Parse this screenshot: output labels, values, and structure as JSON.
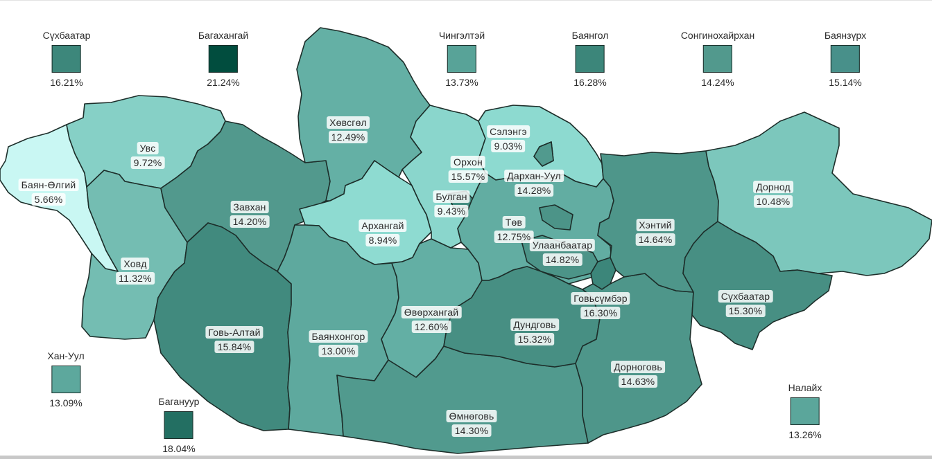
{
  "provinces": [
    {
      "id": "bayan-olgii",
      "name": "Баян-Өлгий",
      "value": "5.66%",
      "color": "#c9f7f3"
    },
    {
      "id": "uvs",
      "name": "Увс",
      "value": "9.72%",
      "color": "#86d0c6"
    },
    {
      "id": "khovd",
      "name": "Ховд",
      "value": "11.32%",
      "color": "#74bdb2"
    },
    {
      "id": "zavkhan",
      "name": "Завхан",
      "value": "14.20%",
      "color": "#52998d"
    },
    {
      "id": "govi-altai",
      "name": "Говь-Алтай",
      "value": "15.84%",
      "color": "#418a7e"
    },
    {
      "id": "khuvsgul",
      "name": "Хөвсгөл",
      "value": "12.49%",
      "color": "#64b0a5"
    },
    {
      "id": "arkhangai",
      "name": "Архангай",
      "value": "8.94%",
      "color": "#8edbd1"
    },
    {
      "id": "bayankhongor",
      "name": "Баянхонгор",
      "value": "13.00%",
      "color": "#5ea99e"
    },
    {
      "id": "uvurkhangai",
      "name": "Өвөрхангай",
      "value": "12.60%",
      "color": "#63afa4"
    },
    {
      "id": "umnugovi",
      "name": "Өмнөговь",
      "value": "14.30%",
      "color": "#519a8e"
    },
    {
      "id": "bulgan",
      "name": "Булган",
      "value": "9.43%",
      "color": "#8ad6cc"
    },
    {
      "id": "orkhon",
      "name": "Орхон",
      "value": "15.57%",
      "color": "#448e82"
    },
    {
      "id": "selenge",
      "name": "Сэлэнгэ",
      "value": "9.03%",
      "color": "#8ddad0"
    },
    {
      "id": "darkhan-uul",
      "name": "Дархан-Уул",
      "value": "14.28%",
      "color": "#519a8e"
    },
    {
      "id": "tuv",
      "name": "Төв",
      "value": "12.75%",
      "color": "#62ada2"
    },
    {
      "id": "ulaanbaatar",
      "name": "Улаанбаатар",
      "value": "14.82%",
      "color": "#4c9488"
    },
    {
      "id": "dundgovi",
      "name": "Дундговь",
      "value": "15.32%",
      "color": "#478f83"
    },
    {
      "id": "govisumber",
      "name": "Говьсүмбэр",
      "value": "16.30%",
      "color": "#3c867a"
    },
    {
      "id": "dornogovi",
      "name": "Дорноговь",
      "value": "14.63%",
      "color": "#4e968a"
    },
    {
      "id": "khentii",
      "name": "Хэнтий",
      "value": "14.64%",
      "color": "#4e968a"
    },
    {
      "id": "dornod",
      "name": "Дорнод",
      "value": "10.48%",
      "color": "#7cc7bc"
    },
    {
      "id": "sukhbaatar",
      "name": "Сүхбаатар",
      "value": "15.30%",
      "color": "#478f83"
    }
  ],
  "districts": [
    {
      "id": "sukhbaatar-district",
      "name": "Сүхбаатар",
      "value": "16.21%",
      "color": "#3d877b"
    },
    {
      "id": "bagakhangai",
      "name": "Багахангай",
      "value": "21.24%",
      "color": "#014d3e"
    },
    {
      "id": "chingeltei",
      "name": "Чингэлтэй",
      "value": "13.73%",
      "color": "#58a398"
    },
    {
      "id": "bayangol",
      "name": "Баянгол",
      "value": "16.28%",
      "color": "#3c867a"
    },
    {
      "id": "songinokhairkhan",
      "name": "Сонгинохайрхан",
      "value": "14.24%",
      "color": "#52998d"
    },
    {
      "id": "bayanzurkh",
      "name": "Баянзүрх",
      "value": "15.14%",
      "color": "#48908a"
    },
    {
      "id": "khan-uul",
      "name": "Хан-Уул",
      "value": "13.09%",
      "color": "#5da89d"
    },
    {
      "id": "baganuur",
      "name": "Багануур",
      "value": "18.04%",
      "color": "#236f62"
    },
    {
      "id": "nalaikh",
      "name": "Налайх",
      "value": "13.26%",
      "color": "#5ba69b"
    }
  ]
}
